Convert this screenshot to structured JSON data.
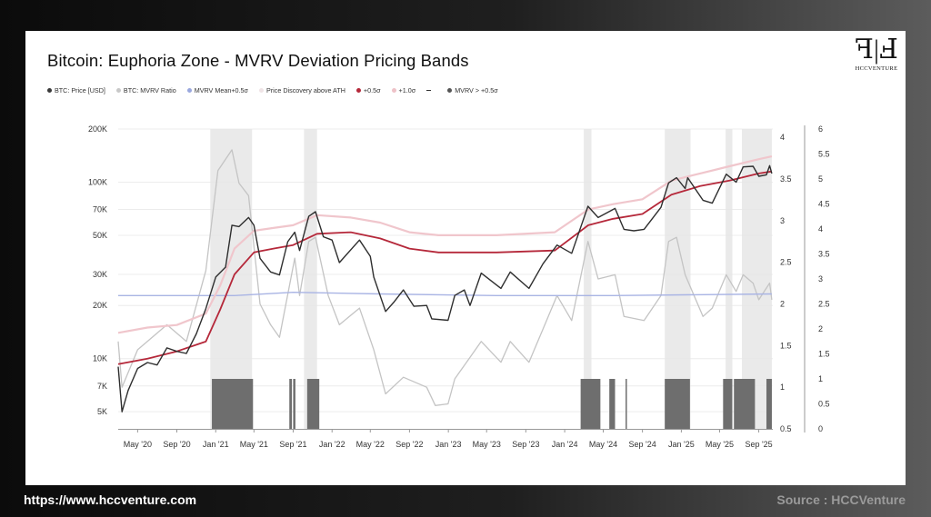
{
  "title": "Bitcoin: Euphoria Zone - MVRV Deviation Pricing Bands",
  "logo_text": "HCCVENTURE",
  "footer": {
    "url": "https://www.hccventure.com",
    "source": "Source : HCCVenture"
  },
  "legend": [
    {
      "label": "BTC: Price [USD]",
      "color": "#3a3a3a"
    },
    {
      "label": "BTC: MVRV Ratio",
      "color": "#c8c8c8"
    },
    {
      "label": "MVRV Mean+0.5σ",
      "color": "#9aa8de"
    },
    {
      "label": "Price Discovery above ATH",
      "color": "#efe4e6"
    },
    {
      "label": "+0.5σ",
      "color": "#b5283a"
    },
    {
      "label": "+1.0σ",
      "color": "#eec2c8"
    },
    {
      "label": "",
      "color": "#333333"
    },
    {
      "label": "MVRV > +0.5σ",
      "color": "#555555"
    }
  ],
  "colors": {
    "price": "#2e2e2e",
    "mvrv": "#c4c4c4",
    "mean": "#a9b4e4",
    "band05": "#b5283a",
    "band10": "#f0c6cc",
    "shade": "#e6e6e6",
    "signal": "#6e6e6e"
  },
  "chart_data": {
    "type": "line",
    "title": "Bitcoin: Euphoria Zone - MVRV Deviation Pricing Bands",
    "x_ticks": [
      "May '20",
      "Sep '20",
      "Jan '21",
      "May '21",
      "Sep '21",
      "Jan '22",
      "May '22",
      "Sep '22",
      "Jan '23",
      "May '23",
      "Sep '23",
      "Jan '24",
      "May '24",
      "Sep '24",
      "Jan '25",
      "May '25",
      "Sep '25"
    ],
    "y_left_ticks": [
      "5K",
      "7K",
      "10K",
      "20K",
      "30K",
      "50K",
      "70K",
      "100K",
      "200K"
    ],
    "y_left_scale": "log",
    "y_left_range": [
      4000,
      200000
    ],
    "y_mid_ticks": [
      "0.5",
      "1",
      "1.5",
      "2",
      "2.5",
      "3",
      "3.5",
      "4"
    ],
    "y_mid_range": [
      0.5,
      4.1
    ],
    "y_right_ticks": [
      "0",
      "0.5",
      "1",
      "1.5",
      "2",
      "2.5",
      "3",
      "3.5",
      "4",
      "4.5",
      "5",
      "5.5",
      "6"
    ],
    "y_right_range": [
      0,
      6
    ],
    "x_range": [
      "2020-03-01",
      "2025-10-15"
    ],
    "series": [
      {
        "name": "BTC: Price [USD]",
        "axis": "left",
        "points": [
          [
            "2020-03-01",
            9000
          ],
          [
            "2020-03-13",
            5000
          ],
          [
            "2020-04-01",
            6600
          ],
          [
            "2020-05-01",
            8800
          ],
          [
            "2020-06-01",
            9500
          ],
          [
            "2020-07-01",
            9200
          ],
          [
            "2020-08-01",
            11500
          ],
          [
            "2020-09-01",
            11000
          ],
          [
            "2020-10-01",
            10700
          ],
          [
            "2020-11-01",
            13800
          ],
          [
            "2020-12-01",
            19200
          ],
          [
            "2021-01-01",
            29000
          ],
          [
            "2021-02-01",
            33000
          ],
          [
            "2021-02-21",
            57000
          ],
          [
            "2021-03-15",
            56000
          ],
          [
            "2021-04-14",
            63000
          ],
          [
            "2021-05-01",
            57000
          ],
          [
            "2021-05-20",
            37000
          ],
          [
            "2021-06-22",
            31000
          ],
          [
            "2021-07-20",
            29800
          ],
          [
            "2021-08-15",
            46000
          ],
          [
            "2021-09-06",
            52000
          ],
          [
            "2021-09-21",
            41000
          ],
          [
            "2021-10-20",
            64000
          ],
          [
            "2021-11-10",
            68000
          ],
          [
            "2021-12-05",
            49000
          ],
          [
            "2022-01-01",
            47000
          ],
          [
            "2022-01-24",
            35000
          ],
          [
            "2022-03-28",
            47000
          ],
          [
            "2022-05-01",
            38000
          ],
          [
            "2022-05-12",
            29000
          ],
          [
            "2022-06-18",
            18500
          ],
          [
            "2022-07-15",
            21000
          ],
          [
            "2022-08-13",
            24500
          ],
          [
            "2022-09-15",
            19800
          ],
          [
            "2022-10-25",
            20000
          ],
          [
            "2022-11-10",
            16800
          ],
          [
            "2022-12-31",
            16500
          ],
          [
            "2023-01-21",
            22800
          ],
          [
            "2023-02-20",
            24500
          ],
          [
            "2023-03-10",
            20000
          ],
          [
            "2023-04-14",
            30500
          ],
          [
            "2023-06-15",
            25000
          ],
          [
            "2023-07-14",
            31000
          ],
          [
            "2023-09-11",
            25000
          ],
          [
            "2023-10-25",
            34500
          ],
          [
            "2023-12-08",
            44000
          ],
          [
            "2024-01-23",
            39500
          ],
          [
            "2024-03-14",
            73000
          ],
          [
            "2024-04-15",
            63000
          ],
          [
            "2024-06-07",
            71000
          ],
          [
            "2024-07-05",
            54000
          ],
          [
            "2024-08-05",
            53000
          ],
          [
            "2024-09-06",
            54000
          ],
          [
            "2024-10-29",
            72000
          ],
          [
            "2024-11-22",
            99000
          ],
          [
            "2024-12-17",
            106000
          ],
          [
            "2025-01-13",
            92000
          ],
          [
            "2025-01-21",
            106000
          ],
          [
            "2025-03-10",
            79000
          ],
          [
            "2025-04-08",
            76000
          ],
          [
            "2025-05-22",
            111000
          ],
          [
            "2025-06-22",
            100000
          ],
          [
            "2025-07-14",
            122000
          ],
          [
            "2025-08-14",
            123000
          ],
          [
            "2025-09-01",
            108000
          ],
          [
            "2025-09-25",
            110000
          ],
          [
            "2025-10-05",
            124000
          ],
          [
            "2025-10-12",
            112000
          ]
        ]
      },
      {
        "name": "BTC: MVRV Ratio",
        "axis": "mid",
        "points": [
          [
            "2020-03-01",
            1.55
          ],
          [
            "2020-03-13",
            1.0
          ],
          [
            "2020-05-01",
            1.45
          ],
          [
            "2020-08-01",
            1.75
          ],
          [
            "2020-10-01",
            1.55
          ],
          [
            "2020-12-01",
            2.4
          ],
          [
            "2021-01-08",
            3.6
          ],
          [
            "2021-02-21",
            3.85
          ],
          [
            "2021-03-15",
            3.45
          ],
          [
            "2021-04-14",
            3.3
          ],
          [
            "2021-05-20",
            2.0
          ],
          [
            "2021-06-22",
            1.75
          ],
          [
            "2021-07-20",
            1.6
          ],
          [
            "2021-09-06",
            2.55
          ],
          [
            "2021-09-21",
            2.1
          ],
          [
            "2021-10-20",
            2.75
          ],
          [
            "2021-11-10",
            2.8
          ],
          [
            "2021-12-20",
            2.1
          ],
          [
            "2022-01-24",
            1.75
          ],
          [
            "2022-03-28",
            1.95
          ],
          [
            "2022-05-12",
            1.45
          ],
          [
            "2022-06-18",
            0.92
          ],
          [
            "2022-08-13",
            1.12
          ],
          [
            "2022-10-25",
            1.0
          ],
          [
            "2022-11-21",
            0.78
          ],
          [
            "2022-12-31",
            0.8
          ],
          [
            "2023-01-21",
            1.1
          ],
          [
            "2023-04-14",
            1.55
          ],
          [
            "2023-06-15",
            1.3
          ],
          [
            "2023-07-14",
            1.55
          ],
          [
            "2023-09-11",
            1.3
          ],
          [
            "2023-10-25",
            1.7
          ],
          [
            "2023-12-08",
            2.1
          ],
          [
            "2024-01-23",
            1.8
          ],
          [
            "2024-03-14",
            2.75
          ],
          [
            "2024-04-15",
            2.3
          ],
          [
            "2024-06-07",
            2.35
          ],
          [
            "2024-07-05",
            1.85
          ],
          [
            "2024-09-06",
            1.8
          ],
          [
            "2024-10-29",
            2.1
          ],
          [
            "2024-11-22",
            2.75
          ],
          [
            "2024-12-17",
            2.8
          ],
          [
            "2025-01-13",
            2.35
          ],
          [
            "2025-03-10",
            1.85
          ],
          [
            "2025-04-08",
            1.95
          ],
          [
            "2025-05-22",
            2.35
          ],
          [
            "2025-06-22",
            2.15
          ],
          [
            "2025-07-14",
            2.35
          ],
          [
            "2025-08-14",
            2.25
          ],
          [
            "2025-09-01",
            2.05
          ],
          [
            "2025-10-05",
            2.25
          ],
          [
            "2025-10-12",
            2.05
          ]
        ]
      },
      {
        "name": "MVRV Mean+0.5σ",
        "axis": "mid",
        "points": [
          [
            "2020-03-01",
            2.1
          ],
          [
            "2021-03-01",
            2.1
          ],
          [
            "2021-09-01",
            2.14
          ],
          [
            "2022-06-01",
            2.12
          ],
          [
            "2023-06-01",
            2.1
          ],
          [
            "2024-06-01",
            2.1
          ],
          [
            "2025-10-12",
            2.12
          ]
        ]
      },
      {
        "name": "+0.5σ",
        "axis": "left",
        "points": [
          [
            "2020-03-01",
            9300
          ],
          [
            "2020-06-01",
            10000
          ],
          [
            "2020-09-01",
            11000
          ],
          [
            "2020-12-01",
            12500
          ],
          [
            "2021-01-15",
            19000
          ],
          [
            "2021-03-01",
            30000
          ],
          [
            "2021-05-01",
            40000
          ],
          [
            "2021-07-01",
            42000
          ],
          [
            "2021-09-01",
            44000
          ],
          [
            "2021-11-15",
            51000
          ],
          [
            "2022-03-01",
            52000
          ],
          [
            "2022-06-01",
            48000
          ],
          [
            "2022-09-01",
            42000
          ],
          [
            "2022-12-01",
            40000
          ],
          [
            "2023-06-01",
            40000
          ],
          [
            "2023-12-01",
            41000
          ],
          [
            "2024-03-15",
            57000
          ],
          [
            "2024-06-01",
            62000
          ],
          [
            "2024-09-01",
            66000
          ],
          [
            "2024-12-01",
            85000
          ],
          [
            "2025-03-01",
            95000
          ],
          [
            "2025-06-01",
            102000
          ],
          [
            "2025-09-01",
            112000
          ],
          [
            "2025-10-12",
            115000
          ]
        ]
      },
      {
        "name": "+1.0σ",
        "axis": "left",
        "points": [
          [
            "2020-03-01",
            14000
          ],
          [
            "2020-06-01",
            15000
          ],
          [
            "2020-09-01",
            15500
          ],
          [
            "2020-12-01",
            18000
          ],
          [
            "2021-01-15",
            26000
          ],
          [
            "2021-03-01",
            42000
          ],
          [
            "2021-05-01",
            53000
          ],
          [
            "2021-07-01",
            55000
          ],
          [
            "2021-09-01",
            57000
          ],
          [
            "2021-11-15",
            65000
          ],
          [
            "2022-03-01",
            63000
          ],
          [
            "2022-06-01",
            59000
          ],
          [
            "2022-09-01",
            52000
          ],
          [
            "2022-12-01",
            50000
          ],
          [
            "2023-06-01",
            50000
          ],
          [
            "2023-12-01",
            52000
          ],
          [
            "2024-03-15",
            70000
          ],
          [
            "2024-06-01",
            75000
          ],
          [
            "2024-09-01",
            80000
          ],
          [
            "2024-12-01",
            102000
          ],
          [
            "2025-03-01",
            112000
          ],
          [
            "2025-06-01",
            123000
          ],
          [
            "2025-09-01",
            135000
          ],
          [
            "2025-10-12",
            140000
          ]
        ]
      }
    ],
    "price_discovery_shading": [
      [
        "2020-12-15",
        "2021-04-25"
      ],
      [
        "2021-10-05",
        "2021-11-15"
      ],
      [
        "2024-03-01",
        "2024-03-25"
      ],
      [
        "2024-11-10",
        "2025-01-30"
      ],
      [
        "2025-05-20",
        "2025-06-10"
      ],
      [
        "2025-07-10",
        "2025-10-12"
      ]
    ],
    "mvrv_above_05_sigma": [
      [
        "2020-12-20",
        "2021-04-28"
      ],
      [
        "2021-08-20",
        "2021-08-28"
      ],
      [
        "2021-09-01",
        "2021-09-08"
      ],
      [
        "2021-10-15",
        "2021-11-22"
      ],
      [
        "2024-02-20",
        "2024-04-22"
      ],
      [
        "2024-05-20",
        "2024-06-07"
      ],
      [
        "2024-07-10",
        "2024-07-14"
      ],
      [
        "2024-11-10",
        "2025-01-28"
      ],
      [
        "2025-05-12",
        "2025-06-10"
      ],
      [
        "2025-06-15",
        "2025-08-20"
      ],
      [
        "2025-09-25",
        "2025-10-12"
      ]
    ]
  }
}
